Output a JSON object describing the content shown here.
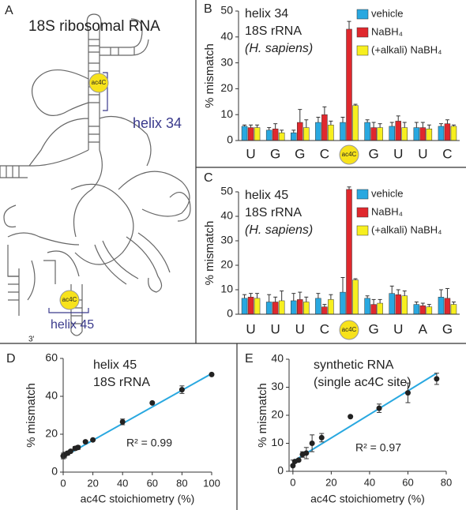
{
  "panel_a": {
    "panel": "A",
    "title": "18S ribosomal RNA",
    "site_1": "ac4C",
    "helix_1": "helix 34",
    "site_2": "ac4C",
    "helix_2": "helix 45",
    "end": "3'"
  },
  "chart_data": [
    {
      "type": "bar",
      "panel": "B",
      "title_lines": [
        "helix 34",
        "18S rRNA",
        "(H. sapiens)"
      ],
      "y_label": "% mismatch",
      "categories": [
        "U",
        "G",
        "G",
        "C",
        "ac4C",
        "G",
        "U",
        "U",
        "C"
      ],
      "category_circle": [
        false,
        false,
        false,
        false,
        true,
        false,
        false,
        false,
        false
      ],
      "circle_color": "#f7e21b",
      "ylim": [
        0,
        50
      ],
      "yticks": [
        0,
        10,
        20,
        30,
        40,
        50
      ],
      "series": [
        {
          "name": "vehicle",
          "color": "#29a8e0",
          "values": [
            5.5,
            4,
            3,
            7,
            7,
            7,
            5.5,
            5,
            5.5
          ],
          "errors": [
            0.5,
            1,
            1,
            2,
            2,
            1,
            1.5,
            2,
            1
          ]
        },
        {
          "name": "NaBH₄",
          "color": "#e0282d",
          "values": [
            5,
            4.5,
            7,
            10,
            43,
            5,
            7.5,
            5,
            6.5
          ],
          "errors": [
            1,
            2,
            5,
            3,
            3,
            2,
            2,
            2,
            1.5
          ]
        },
        {
          "name": "(+alkali) NaBH₄",
          "color": "#f7ef1f",
          "values": [
            5,
            3,
            5,
            6,
            13.5,
            5,
            5,
            4.5,
            5.5
          ],
          "errors": [
            1,
            1,
            3,
            1.5,
            0.5,
            1.5,
            2,
            1.5,
            0.5
          ]
        }
      ]
    },
    {
      "type": "bar",
      "panel": "C",
      "title_lines": [
        "helix 45",
        "18S rRNA",
        "(H. sapiens)"
      ],
      "y_label": "% mismatch",
      "categories": [
        "U",
        "U",
        "U",
        "C",
        "ac4C",
        "G",
        "U",
        "A",
        "G"
      ],
      "category_circle": [
        false,
        false,
        false,
        false,
        true,
        false,
        false,
        false,
        false
      ],
      "circle_color": "#f7e21b",
      "ylim": [
        0,
        50
      ],
      "yticks": [
        0,
        10,
        20,
        30,
        40,
        50
      ],
      "series": [
        {
          "name": "vehicle",
          "color": "#29a8e0",
          "values": [
            6.5,
            5,
            5.5,
            6.5,
            9,
            6.5,
            8.5,
            4,
            7
          ],
          "errors": [
            1.5,
            3,
            3,
            2,
            6,
            1,
            3,
            1,
            3
          ]
        },
        {
          "name": "NaBH₄",
          "color": "#e0282d",
          "values": [
            7,
            5,
            6,
            3,
            51,
            4,
            8,
            3.5,
            6.5
          ],
          "errors": [
            1.5,
            2,
            3,
            1,
            1,
            2,
            2,
            1,
            4
          ]
        },
        {
          "name": "(+alkali) NaBH₄",
          "color": "#f7ef1f",
          "values": [
            6.5,
            5.5,
            5,
            6,
            14,
            4.5,
            7.5,
            3,
            4
          ],
          "errors": [
            2,
            4,
            2,
            2,
            0.5,
            1.5,
            2,
            1,
            1
          ]
        }
      ]
    },
    {
      "type": "scatter",
      "panel": "D",
      "title_lines": [
        "helix 45",
        "18S rRNA"
      ],
      "y_label": "% mismatch",
      "x_label": "ac4C stoichiometry (%)",
      "annotation": "R² = 0.99",
      "color": "#222222",
      "x": [
        0,
        1,
        3,
        5,
        8,
        10,
        15,
        20,
        40,
        60,
        80,
        100
      ],
      "values": [
        8.5,
        9,
        10,
        11,
        12.5,
        13,
        16,
        17,
        26.5,
        36.5,
        43.5,
        51.5
      ],
      "errors": [
        1.5,
        1.5,
        1,
        0.5,
        1,
        1,
        0.5,
        0.5,
        1.5,
        0.5,
        2,
        0.5
      ],
      "fit": {
        "color": "#29a8e0",
        "x": [
          0,
          100
        ],
        "y": [
          8,
          52
        ]
      },
      "xlim": [
        0,
        100
      ],
      "xticks": [
        0,
        20,
        40,
        60,
        80,
        100
      ],
      "ylim": [
        0,
        60
      ],
      "yticks": [
        0,
        20,
        40,
        60
      ]
    },
    {
      "type": "scatter",
      "panel": "E",
      "title_lines": [
        "synthetic RNA",
        "(single ac4C site)"
      ],
      "y_label": "% mismatch",
      "x_label": "ac4C stoichiometry (%)",
      "annotation": "R² = 0.97",
      "color": "#222222",
      "x": [
        0,
        1,
        3,
        5,
        7,
        10,
        15,
        30,
        45,
        60,
        75
      ],
      "values": [
        2,
        3.5,
        4,
        6,
        6.5,
        10,
        12,
        19.5,
        22.5,
        28,
        33
      ],
      "errors": [
        2,
        0.5,
        0.5,
        1,
        2,
        3,
        1.5,
        0,
        1.5,
        3.5,
        2
      ],
      "fit": {
        "color": "#29a8e0",
        "x": [
          0,
          75
        ],
        "y": [
          3.5,
          35
        ]
      },
      "xlim": [
        -2,
        80
      ],
      "xticks": [
        0,
        20,
        40,
        60,
        80
      ],
      "ylim": [
        0,
        40
      ],
      "yticks": [
        0,
        10,
        20,
        30,
        40
      ]
    }
  ]
}
